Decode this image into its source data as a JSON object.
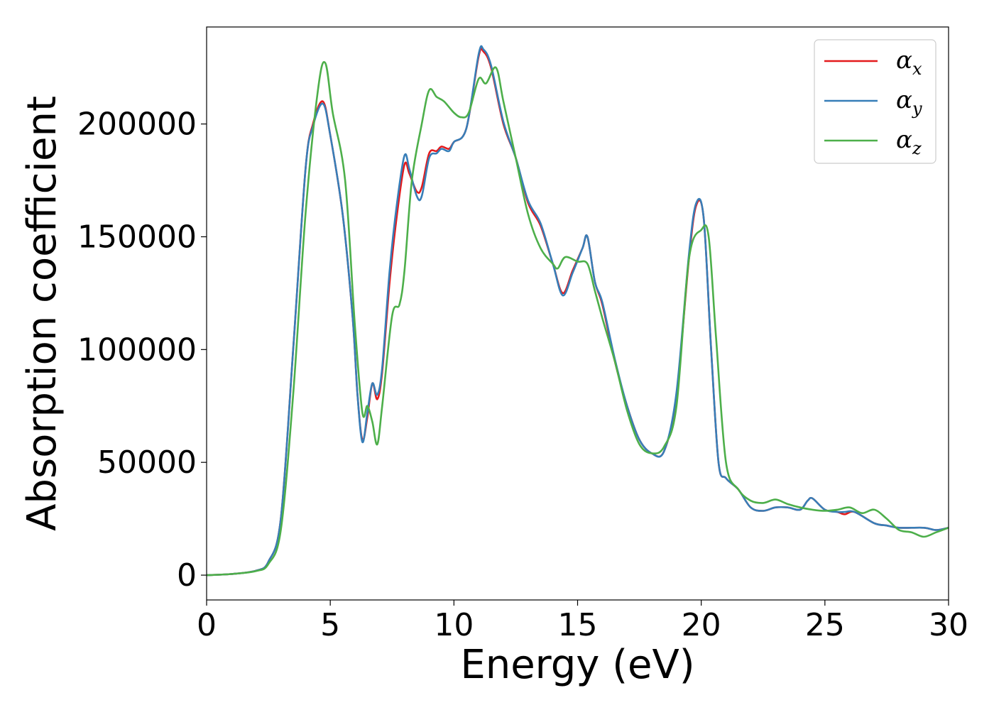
{
  "chart_data": {
    "type": "line",
    "xlabel": "Energy (eV)",
    "ylabel": "Absorption coefficient",
    "xlim": [
      0,
      30
    ],
    "ylim": [
      -11000,
      243000
    ],
    "xticks": [
      0,
      5,
      10,
      15,
      20,
      25,
      30
    ],
    "yticks": [
      0,
      50000,
      100000,
      150000,
      200000
    ],
    "grid": false,
    "legend_position": "top-right",
    "series": [
      {
        "name": "α_x",
        "symbol": "α",
        "sub": "x",
        "color": "#e41a1c",
        "x": [
          0,
          1,
          2,
          2.5,
          3,
          3.5,
          4,
          4.3,
          4.7,
          5,
          5.5,
          5.9,
          6.1,
          6.3,
          6.5,
          6.7,
          6.9,
          7.1,
          7.4,
          7.7,
          8,
          8.2,
          8.5,
          8.7,
          9,
          9.3,
          9.5,
          9.8,
          10,
          10.5,
          11,
          11.2,
          11.5,
          12,
          12.5,
          13,
          13.5,
          14,
          14.4,
          14.8,
          15.2,
          15.4,
          15.7,
          16,
          16.5,
          17,
          17.5,
          18,
          18.5,
          19,
          19.5,
          19.8,
          20.1,
          20.4,
          20.7,
          21,
          21.5,
          22,
          22.5,
          23,
          23.5,
          24,
          24.3,
          24.5,
          25,
          25.5,
          25.8,
          26.2,
          27,
          27.5,
          28,
          29,
          29.5,
          30
        ],
        "y": [
          0,
          500,
          2000,
          6000,
          25000,
          100000,
          180000,
          200000,
          210000,
          195000,
          160000,
          115000,
          80000,
          60000,
          70000,
          85000,
          78000,
          90000,
          130000,
          160000,
          182000,
          178000,
          170000,
          172000,
          187000,
          188000,
          190000,
          189000,
          192000,
          198000,
          230000,
          232000,
          225000,
          200000,
          185000,
          165000,
          155000,
          138000,
          125000,
          135000,
          145000,
          150000,
          130000,
          120000,
          95000,
          75000,
          60000,
          54000,
          55000,
          80000,
          140000,
          164000,
          158000,
          100000,
          50000,
          43000,
          38000,
          30000,
          28500,
          30000,
          30000,
          29000,
          33000,
          34000,
          29000,
          28000,
          27000,
          28000,
          23000,
          22000,
          21000,
          21000,
          20000,
          21000
        ]
      },
      {
        "name": "α_y",
        "symbol": "α",
        "sub": "y",
        "color": "#377eb8",
        "x": [
          0,
          1,
          2,
          2.5,
          3,
          3.5,
          4,
          4.3,
          4.7,
          5,
          5.5,
          5.9,
          6.1,
          6.3,
          6.5,
          6.7,
          6.9,
          7.1,
          7.4,
          7.7,
          8,
          8.2,
          8.5,
          8.7,
          9,
          9.3,
          9.5,
          9.8,
          10,
          10.5,
          11,
          11.2,
          11.5,
          12,
          12.5,
          13,
          13.5,
          14,
          14.4,
          14.8,
          15.2,
          15.4,
          15.7,
          16,
          16.5,
          17,
          17.5,
          18,
          18.5,
          19,
          19.5,
          19.8,
          20.1,
          20.4,
          20.7,
          21,
          21.5,
          22,
          22.5,
          23,
          23.5,
          24,
          24.3,
          24.5,
          25,
          25.5,
          25.8,
          26.2,
          27,
          27.5,
          28,
          29,
          29.5,
          30
        ],
        "y": [
          0,
          500,
          2000,
          6000,
          25000,
          100000,
          180000,
          199000,
          209000,
          195000,
          160000,
          115000,
          80000,
          59000,
          72000,
          85000,
          80000,
          92000,
          135000,
          165000,
          186000,
          180000,
          168000,
          168000,
          185000,
          187000,
          189000,
          188000,
          192000,
          198000,
          231000,
          233000,
          226000,
          201000,
          185000,
          166000,
          156000,
          138000,
          124000,
          134000,
          145000,
          150000,
          130000,
          121000,
          96000,
          75000,
          60000,
          54000,
          55000,
          81000,
          142000,
          165000,
          158000,
          100000,
          50000,
          43000,
          38000,
          30000,
          28500,
          30000,
          30000,
          29000,
          33000,
          34000,
          29000,
          28000,
          28000,
          28000,
          23000,
          22000,
          21000,
          21000,
          20000,
          21000
        ]
      },
      {
        "name": "α_z",
        "symbol": "α",
        "sub": "z",
        "color": "#4daf4a",
        "x": [
          0,
          1,
          2,
          2.5,
          3,
          3.5,
          4,
          4.5,
          4.8,
          5.1,
          5.6,
          6,
          6.3,
          6.5,
          6.7,
          6.9,
          7.1,
          7.5,
          7.8,
          8,
          8.3,
          8.7,
          9,
          9.3,
          9.6,
          10,
          10.3,
          10.6,
          11,
          11.3,
          11.7,
          12,
          12.5,
          13,
          13.5,
          14,
          14.2,
          14.5,
          15,
          15.4,
          15.7,
          16,
          16.5,
          17,
          17.5,
          18,
          18.5,
          19,
          19.5,
          20,
          20.3,
          20.6,
          21,
          21.5,
          22,
          22.5,
          23,
          23.5,
          24,
          24.5,
          25,
          25.5,
          26,
          26.5,
          27,
          27.5,
          28,
          28.5,
          29,
          29.5,
          30
        ],
        "y": [
          0,
          500,
          1800,
          5000,
          20000,
          80000,
          160000,
          215000,
          227000,
          205000,
          175000,
          110000,
          72000,
          75000,
          68000,
          58000,
          75000,
          115000,
          120000,
          135000,
          175000,
          200000,
          215000,
          212000,
          210000,
          205000,
          203000,
          205000,
          220000,
          218000,
          225000,
          210000,
          185000,
          160000,
          145000,
          138000,
          136000,
          141000,
          139000,
          138000,
          126000,
          114000,
          95000,
          73000,
          58000,
          54000,
          57000,
          75000,
          140000,
          153000,
          150000,
          105000,
          50000,
          38000,
          33000,
          32000,
          33500,
          31500,
          30000,
          29000,
          28500,
          29000,
          30000,
          27500,
          29000,
          25000,
          20000,
          19000,
          17000,
          19000,
          21000
        ]
      }
    ]
  }
}
